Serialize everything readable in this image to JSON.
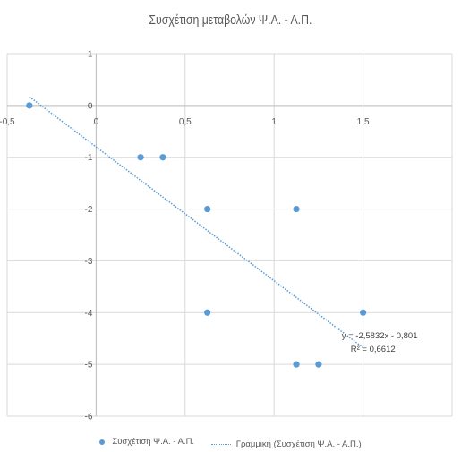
{
  "chart_data": {
    "type": "scatter",
    "title": "Συσχέτιση μεταβολών Ψ.Α. - Α.Π.",
    "xlabel": "",
    "ylabel": "",
    "xlim": [
      -0.5,
      2.0
    ],
    "ylim": [
      -6,
      1
    ],
    "x_ticks": [
      "-0,5",
      "0",
      "0,5",
      "1",
      "1,5"
    ],
    "y_ticks": [
      "1",
      "0",
      "-1",
      "-2",
      "-3",
      "-4",
      "-5",
      "-6"
    ],
    "grid": true,
    "series": [
      {
        "name": "Συσχέτιση Ψ.Α. - Α.Π.",
        "color": "#5B9BD5",
        "points": [
          {
            "x": -0.375,
            "y": 0
          },
          {
            "x": 0.25,
            "y": -1
          },
          {
            "x": 0.375,
            "y": -1
          },
          {
            "x": 0.625,
            "y": -2
          },
          {
            "x": 0.625,
            "y": -4
          },
          {
            "x": 1.125,
            "y": -2
          },
          {
            "x": 1.125,
            "y": -5
          },
          {
            "x": 1.25,
            "y": -5
          },
          {
            "x": 1.5,
            "y": -4
          }
        ]
      }
    ],
    "trendline": {
      "name": "Γραμμική (Συσχέτιση Ψ.Α. - Α.Π.)",
      "type": "linear",
      "slope": -2.5832,
      "intercept": -0.801,
      "x_range": [
        -0.375,
        1.5
      ],
      "equation_label": "y = -2,5832x - 0,801",
      "r2_label": "R² = 0,6612"
    },
    "legend_position": "bottom"
  }
}
